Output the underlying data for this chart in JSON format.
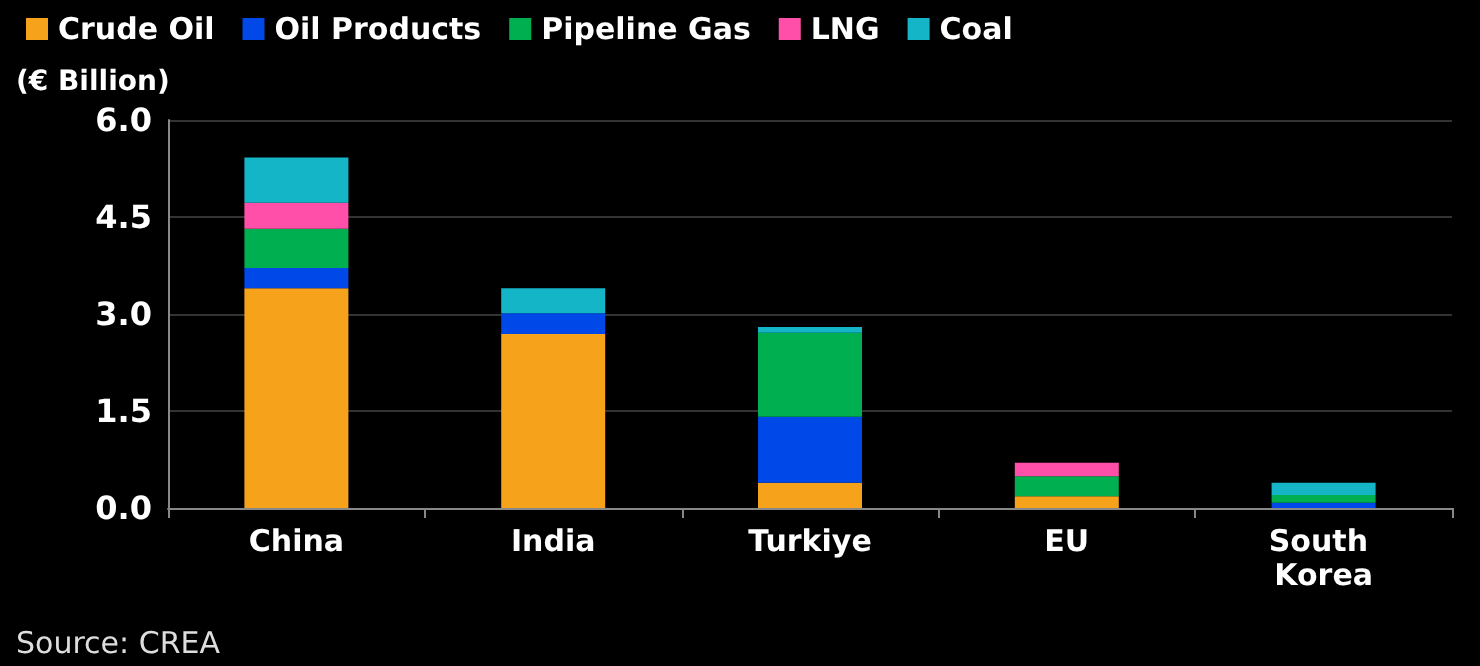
{
  "chart_data": {
    "type": "bar",
    "stacked": true,
    "ylabel": "(€ Billion)",
    "categories": [
      "China",
      "India",
      "Turkiye",
      "EU",
      "South Korea"
    ],
    "series": [
      {
        "name": "Crude Oil",
        "color": "#f7a21b",
        "values": [
          3.4,
          2.69,
          0.39,
          0.18,
          0
        ]
      },
      {
        "name": "Oil Products",
        "color": "#0048e8",
        "values": [
          0.31,
          0.32,
          1.02,
          0,
          0.08
        ]
      },
      {
        "name": "Pipeline Gas",
        "color": "#00b050",
        "values": [
          0.61,
          0,
          1.3,
          0.31,
          0.12
        ]
      },
      {
        "name": "LNG",
        "color": "#ff4fa8",
        "values": [
          0.4,
          0,
          0,
          0.21,
          0
        ]
      },
      {
        "name": "Coal",
        "color": "#15b5c8",
        "values": [
          0.7,
          0.39,
          0.09,
          0,
          0.19
        ]
      }
    ],
    "ylim": [
      0,
      6
    ],
    "yticks": [
      {
        "value": 0,
        "label": "0.0"
      },
      1.5,
      {
        "value": 3,
        "label": "3.0"
      },
      4.5,
      {
        "value": 6,
        "label": "6.0"
      }
    ],
    "grid": "y",
    "legend": "top left",
    "annotations": [
      "Source: CREA"
    ]
  }
}
